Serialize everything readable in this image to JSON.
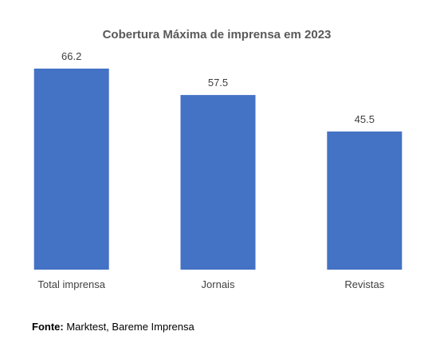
{
  "chart_data": {
    "type": "bar",
    "title": "Cobertura Máxima de imprensa em 2023",
    "categories": [
      "Total imprensa",
      "Jornais",
      "Revistas"
    ],
    "values": [
      66.2,
      57.5,
      45.5
    ],
    "value_labels": [
      "66.2",
      "57.5",
      "45.5"
    ],
    "xlabel": "",
    "ylabel": "",
    "ylim": [
      0,
      66.2
    ],
    "grid": false,
    "legend": "none",
    "bar_color": "#4472C4"
  },
  "source": {
    "label": "Fonte:",
    "text": "Marktest, Bareme Imprensa"
  }
}
